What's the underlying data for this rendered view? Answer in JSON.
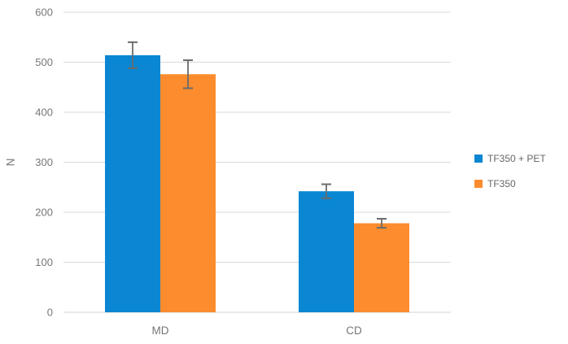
{
  "chart_data": {
    "type": "bar",
    "title": "",
    "categories": [
      "MD",
      "CD"
    ],
    "series": [
      {
        "name": "TF350 + PET",
        "color": "#0A86D2",
        "values": [
          514,
          242
        ],
        "errors": [
          26,
          14
        ]
      },
      {
        "name": "TF350",
        "color": "#FC8C2D",
        "values": [
          476,
          178
        ],
        "errors": [
          28,
          9
        ]
      }
    ],
    "ylabel": "N",
    "xlabel": "",
    "ylim": [
      0,
      600
    ],
    "ytick_step": 100,
    "grid": true,
    "legend_position": "right"
  },
  "styles": {
    "background": "#FFFFFF",
    "gridline": "#D9D9D9",
    "axis_line": "#D3D3D3",
    "tick_text": "#767676",
    "legend_text": "#666666",
    "error_bar": "#6B6B6B"
  }
}
